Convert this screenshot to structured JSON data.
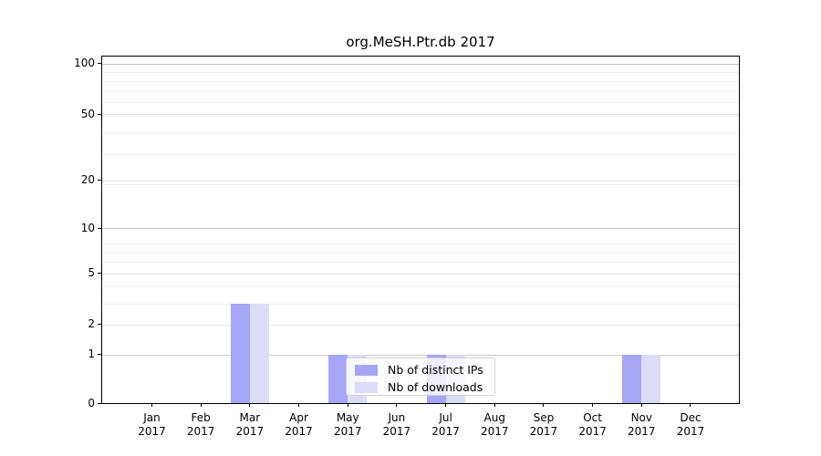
{
  "figure": {
    "background": "#ffffff"
  },
  "chart_data": {
    "type": "bar",
    "title": "org.MeSH.Ptr.db 2017",
    "xlabel": "",
    "ylabel": "",
    "year": "2017",
    "categories": [
      "Jan",
      "Feb",
      "Mar",
      "Apr",
      "May",
      "Jun",
      "Jul",
      "Aug",
      "Sep",
      "Oct",
      "Nov",
      "Dec"
    ],
    "series": [
      {
        "name": "Nb of distinct IPs",
        "color": "#a6a6f6",
        "values": [
          0,
          0,
          3,
          0,
          1,
          0,
          1,
          0,
          0,
          0,
          1,
          0
        ]
      },
      {
        "name": "Nb of downloads",
        "color": "#dcdcf8",
        "values": [
          0,
          0,
          3,
          0,
          1,
          0,
          1,
          0,
          0,
          0,
          1,
          0
        ]
      }
    ],
    "yscale": "log1p",
    "ylim": [
      0,
      110
    ],
    "yticks": [
      0,
      1,
      2,
      5,
      10,
      20,
      50,
      100
    ],
    "y_major_gridlines": [
      1,
      10,
      100
    ],
    "grid": true,
    "legend": {
      "position": "lower-center-inside",
      "frame": true
    },
    "colors": {
      "grid_major": "#c9c9c9",
      "grid_mid": "#e4e4e4",
      "grid_minor": "#f1f1f1",
      "axis": "#000000",
      "text": "#000000",
      "legend_border": "#d0d0d0",
      "legend_bg": "rgba(255,255,255,0.8)"
    }
  }
}
